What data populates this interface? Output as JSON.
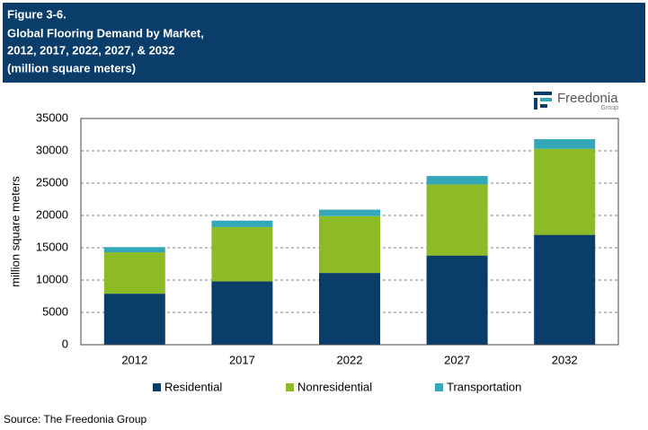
{
  "chart_data": {
    "type": "stacked-bar",
    "figure": "Figure 3-6.",
    "title": [
      "Global Flooring Demand by Market,",
      "2012, 2017, 2022, 2027, & 2032"
    ],
    "subtitle": "(million square meters)",
    "logo": {
      "name": "Freedonia",
      "sub": "Group"
    },
    "y_label": "million square meters",
    "categories": [
      "2012",
      "2017",
      "2022",
      "2027",
      "2032"
    ],
    "series": [
      {
        "name": "Residential",
        "color": "#0b3d6b",
        "values": [
          7900,
          9800,
          11100,
          13800,
          17000
        ]
      },
      {
        "name": "Nonresidential",
        "color": "#8dbb25",
        "values": [
          6400,
          8400,
          8800,
          11000,
          13300
        ]
      },
      {
        "name": "Transportation",
        "color": "#34a8b8",
        "values": [
          800,
          1000,
          1000,
          1300,
          1500
        ]
      }
    ],
    "ylim": [
      0,
      35000
    ],
    "yticks": [
      0,
      5000,
      10000,
      15000,
      20000,
      25000,
      30000,
      35000
    ],
    "grid": true,
    "legend": "bottom",
    "source": "Source: The Freedonia Group"
  }
}
